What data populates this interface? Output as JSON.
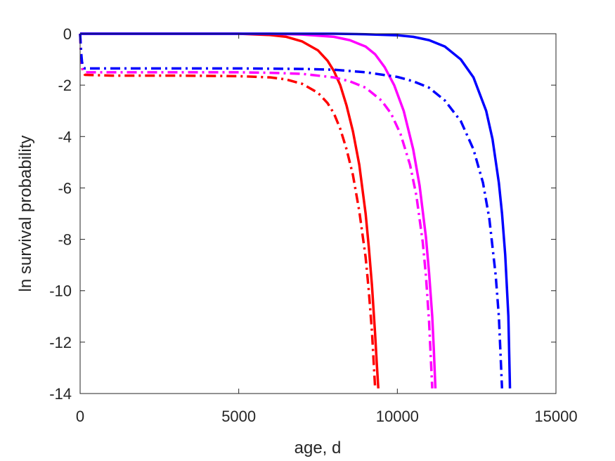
{
  "chart_data": {
    "type": "line",
    "title": "",
    "xlabel": "age, d",
    "ylabel": "ln survival probability",
    "xlim": [
      0,
      15000
    ],
    "ylim": [
      -14,
      0
    ],
    "xticks": [
      0,
      5000,
      10000,
      15000
    ],
    "yticks": [
      0,
      -2,
      -4,
      -6,
      -8,
      -10,
      -12,
      -14
    ],
    "grid": false,
    "legend": "none",
    "series": [
      {
        "color": "#ff0000",
        "style": "solid",
        "x": [
          0,
          1000,
          2000,
          3000,
          4000,
          5000,
          6000,
          6500,
          7000,
          7500,
          7800,
          8000,
          8200,
          8400,
          8600,
          8800,
          9000,
          9100,
          9200,
          9300,
          9350,
          9400
        ],
        "y": [
          0,
          0,
          0,
          0,
          0,
          0,
          -0.05,
          -0.12,
          -0.3,
          -0.65,
          -1.05,
          -1.45,
          -2.0,
          -2.8,
          -3.8,
          -5.1,
          -7.0,
          -8.3,
          -9.8,
          -11.7,
          -12.8,
          -13.8
        ]
      },
      {
        "color": "#ff0000",
        "style": "dashdot",
        "x": [
          0,
          30,
          60,
          100,
          150,
          1000,
          3000,
          5000,
          6000,
          6500,
          7000,
          7500,
          7800,
          8000,
          8200,
          8400,
          8600,
          8800,
          9000,
          9100,
          9200,
          9300
        ],
        "y": [
          0,
          -0.8,
          -1.3,
          -1.5,
          -1.6,
          -1.63,
          -1.63,
          -1.65,
          -1.7,
          -1.78,
          -1.95,
          -2.3,
          -2.7,
          -3.1,
          -3.7,
          -4.5,
          -5.5,
          -6.9,
          -8.7,
          -10.0,
          -11.6,
          -13.8
        ]
      },
      {
        "color": "#ff00ff",
        "style": "solid",
        "x": [
          0,
          2000,
          4000,
          6000,
          7000,
          8000,
          8500,
          9000,
          9300,
          9600,
          9900,
          10200,
          10500,
          10700,
          10900,
          11000,
          11100,
          11150,
          11200
        ],
        "y": [
          0,
          0,
          0,
          0,
          -0.03,
          -0.12,
          -0.25,
          -0.5,
          -0.8,
          -1.3,
          -2.0,
          -3.0,
          -4.5,
          -5.9,
          -7.9,
          -9.3,
          -11.0,
          -12.3,
          -13.8
        ]
      },
      {
        "color": "#ff00ff",
        "style": "dashdot",
        "x": [
          0,
          30,
          60,
          100,
          150,
          1000,
          3000,
          5000,
          6000,
          7000,
          8000,
          8500,
          9000,
          9500,
          9800,
          10100,
          10400,
          10600,
          10800,
          10900,
          11000,
          11100
        ],
        "y": [
          0,
          -0.8,
          -1.25,
          -1.45,
          -1.5,
          -1.5,
          -1.5,
          -1.5,
          -1.52,
          -1.56,
          -1.7,
          -1.85,
          -2.1,
          -2.6,
          -3.1,
          -3.9,
          -5.1,
          -6.3,
          -8.1,
          -9.4,
          -11.2,
          -13.8
        ]
      },
      {
        "color": "#0000ff",
        "style": "solid",
        "x": [
          0,
          3000,
          6000,
          8000,
          9000,
          10000,
          10500,
          11000,
          11500,
          12000,
          12400,
          12800,
          13000,
          13200,
          13300,
          13400,
          13500,
          13550
        ],
        "y": [
          0,
          0,
          0,
          0,
          -0.02,
          -0.06,
          -0.12,
          -0.25,
          -0.5,
          -1.0,
          -1.7,
          -3.0,
          -4.1,
          -5.8,
          -7.0,
          -8.6,
          -11.0,
          -13.8
        ]
      },
      {
        "color": "#0000ff",
        "style": "dashdot",
        "x": [
          0,
          30,
          60,
          100,
          150,
          1000,
          3000,
          5000,
          7000,
          8000,
          9000,
          10000,
          10500,
          11000,
          11500,
          12000,
          12400,
          12700,
          12900,
          13100,
          13200,
          13300
        ],
        "y": [
          0,
          -0.7,
          -1.1,
          -1.3,
          -1.35,
          -1.35,
          -1.35,
          -1.35,
          -1.37,
          -1.4,
          -1.5,
          -1.68,
          -1.85,
          -2.1,
          -2.6,
          -3.4,
          -4.5,
          -5.8,
          -7.2,
          -9.4,
          -11.0,
          -13.8
        ]
      }
    ]
  }
}
